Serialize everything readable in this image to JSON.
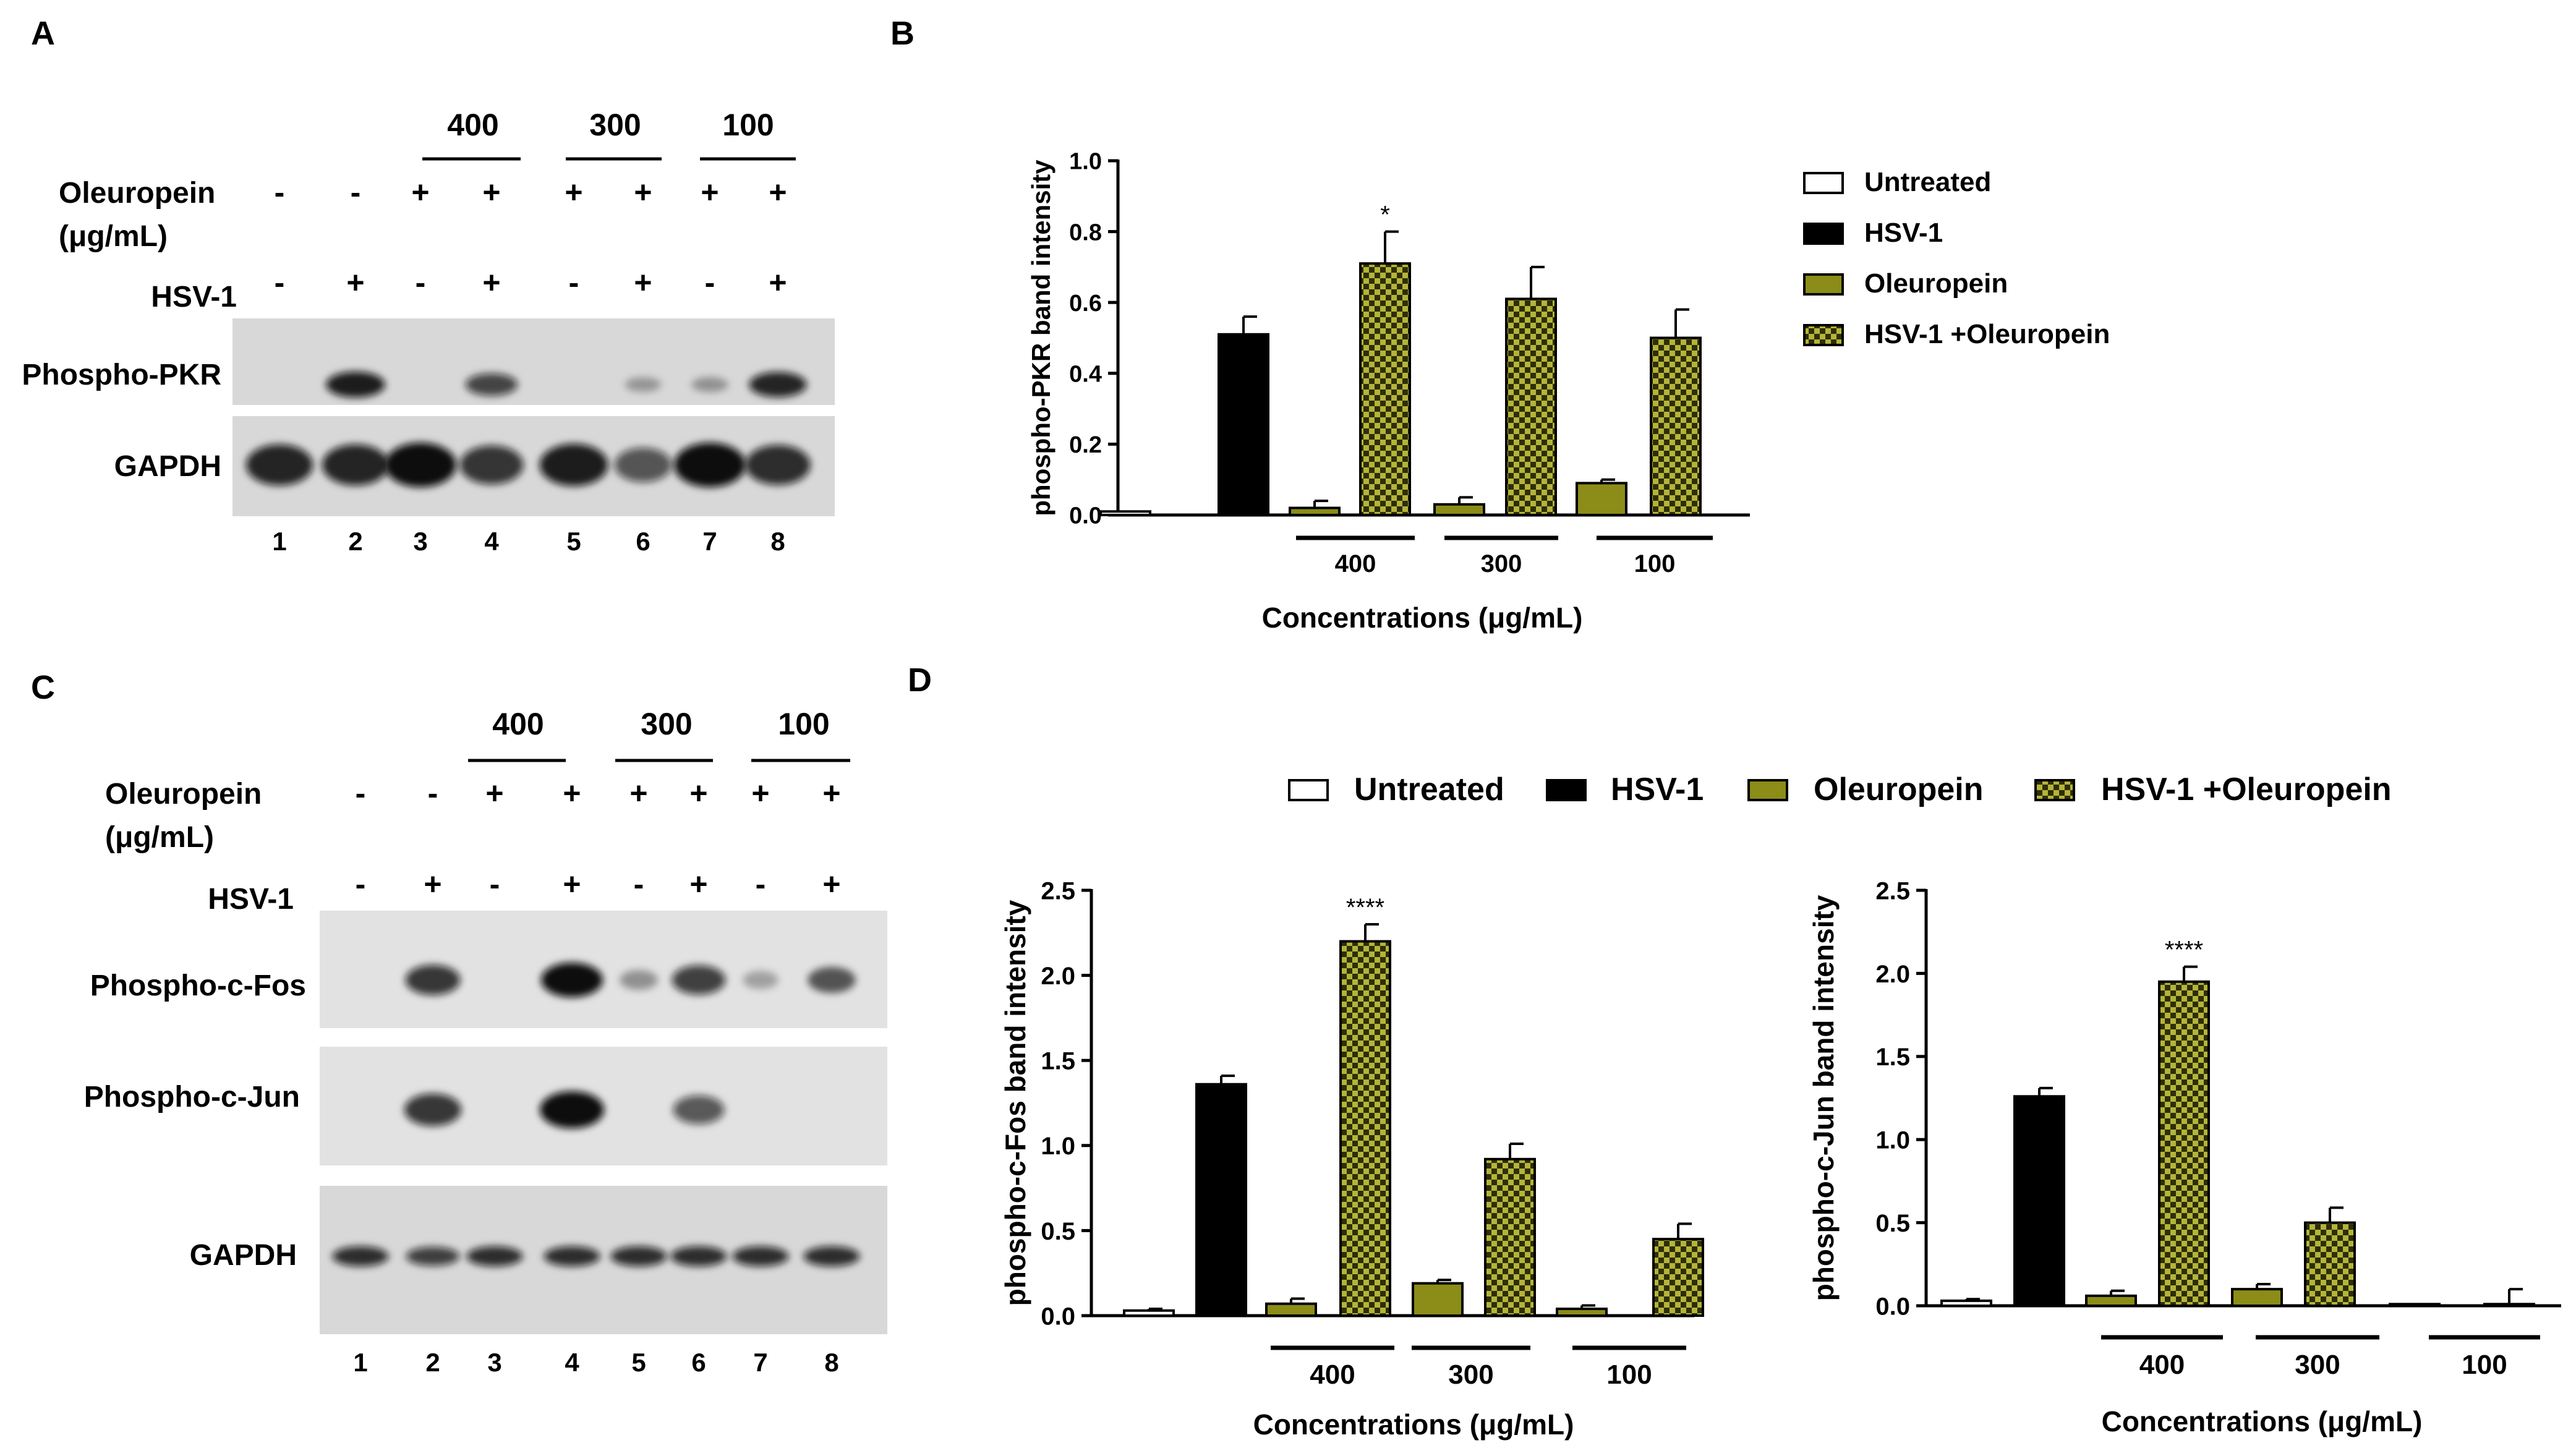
{
  "colors": {
    "untreated": "#ffffff",
    "hsv1": "#000000",
    "oleuropein": "#8c8c18",
    "hsv1_oleuropein_dark": "#2e2e08",
    "hsv1_oleuropein_light": "#b4b43a",
    "blot_background": "#d8d8d8",
    "blot_background_light": "#e2e2e2"
  },
  "panels": {
    "A": {
      "letter": "A"
    },
    "B": {
      "letter": "B"
    },
    "C": {
      "letter": "C"
    },
    "D": {
      "letter": "D"
    }
  },
  "blotA": {
    "concentrations": [
      "400",
      "300",
      "100"
    ],
    "oleuropein_label_line1": "Oleuropein",
    "oleuropein_label_line2": "(μg/mL)",
    "oleuropein_signs": [
      "-",
      "-",
      "+",
      "+",
      "+",
      "+",
      "+",
      "+"
    ],
    "hsv_label": "HSV-1",
    "hsv_signs": [
      "-",
      "+",
      "-",
      "+",
      "-",
      "+",
      "-",
      "+"
    ],
    "band_labels": [
      "Phospho-PKR",
      "GAPDH"
    ],
    "lanes": [
      "1",
      "2",
      "3",
      "4",
      "5",
      "6",
      "7",
      "8"
    ],
    "band_intensity": [
      [
        0.0,
        0.9,
        0.0,
        0.65,
        0.0,
        0.08,
        0.1,
        0.85
      ],
      [
        0.85,
        0.85,
        1.0,
        0.75,
        0.9,
        0.55,
        1.0,
        0.8
      ]
    ]
  },
  "blotC": {
    "concentrations": [
      "400",
      "300",
      "100"
    ],
    "oleuropein_label_line1": "Oleuropein",
    "oleuropein_label_line2": "(μg/mL)",
    "oleuropein_signs": [
      "-",
      "-",
      "+",
      "+",
      "+",
      "+",
      "+",
      "+"
    ],
    "hsv_label": "HSV-1",
    "hsv_signs": [
      "-",
      "+",
      "-",
      "+",
      "-",
      "+",
      "-",
      "+"
    ],
    "band_labels": [
      "Phospho-c-Fos",
      "Phospho-c-Jun",
      "GAPDH"
    ],
    "lanes": [
      "1",
      "2",
      "3",
      "4",
      "5",
      "6",
      "7",
      "8"
    ],
    "band_intensity": [
      [
        0.0,
        0.75,
        0.0,
        1.0,
        0.15,
        0.7,
        0.05,
        0.5
      ],
      [
        0.0,
        0.75,
        0.0,
        1.0,
        0.0,
        0.55,
        0.0,
        0.0
      ],
      [
        0.8,
        0.7,
        0.8,
        0.8,
        0.8,
        0.8,
        0.8,
        0.8
      ]
    ]
  },
  "legend_labels": [
    "Untreated",
    "HSV-1",
    "Oleuropein",
    "HSV-1 +Oleuropein"
  ],
  "chart_data": [
    {
      "type": "bar",
      "id": "B",
      "title": "",
      "ylabel": "phospho-PKR band intensity",
      "xlabel": "Concentrations (μg/mL)",
      "ylim": [
        0,
        1.0
      ],
      "yticks": [
        "0.0",
        "0.2",
        "0.4",
        "0.6",
        "0.8",
        "1.0"
      ],
      "tick_values": [
        0,
        0.2,
        0.4,
        0.6,
        0.8,
        1.0
      ],
      "groups": [
        "400",
        "300",
        "100"
      ],
      "bars": [
        {
          "series": "Untreated",
          "value": 0.01,
          "error": 0.0
        },
        {
          "series": "HSV-1",
          "value": 0.51,
          "error": 0.05
        },
        {
          "series": "Oleuropein",
          "group": "400",
          "value": 0.02,
          "error": 0.02
        },
        {
          "series": "HSV-1 +Oleuropein",
          "group": "400",
          "value": 0.71,
          "error": 0.09,
          "significance": "*"
        },
        {
          "series": "Oleuropein",
          "group": "300",
          "value": 0.03,
          "error": 0.02
        },
        {
          "series": "HSV-1 +Oleuropein",
          "group": "300",
          "value": 0.61,
          "error": 0.09
        },
        {
          "series": "Oleuropein",
          "group": "100",
          "value": 0.09,
          "error": 0.01
        },
        {
          "series": "HSV-1 +Oleuropein",
          "group": "100",
          "value": 0.5,
          "error": 0.08
        }
      ]
    },
    {
      "type": "bar",
      "id": "D-fos",
      "title": "",
      "ylabel": "phospho-c-Fos band intensity",
      "xlabel": "Concentrations (μg/mL)",
      "ylim": [
        0,
        2.5
      ],
      "yticks": [
        "0.0",
        "0.5",
        "1.0",
        "1.5",
        "2.0",
        "2.5"
      ],
      "tick_values": [
        0,
        0.5,
        1.0,
        1.5,
        2.0,
        2.5
      ],
      "groups": [
        "400",
        "300",
        "100"
      ],
      "bars": [
        {
          "series": "Untreated",
          "value": 0.03,
          "error": 0.01
        },
        {
          "series": "HSV-1",
          "value": 1.36,
          "error": 0.05
        },
        {
          "series": "Oleuropein",
          "group": "400",
          "value": 0.07,
          "error": 0.03
        },
        {
          "series": "HSV-1 +Oleuropein",
          "group": "400",
          "value": 2.2,
          "error": 0.1,
          "significance": "****"
        },
        {
          "series": "Oleuropein",
          "group": "300",
          "value": 0.19,
          "error": 0.02
        },
        {
          "series": "HSV-1 +Oleuropein",
          "group": "300",
          "value": 0.92,
          "error": 0.09
        },
        {
          "series": "Oleuropein",
          "group": "100",
          "value": 0.04,
          "error": 0.02
        },
        {
          "series": "HSV-1 +Oleuropein",
          "group": "100",
          "value": 0.45,
          "error": 0.09
        }
      ]
    },
    {
      "type": "bar",
      "id": "D-jun",
      "title": "",
      "ylabel": "phospho-c-Jun band intensity",
      "xlabel": "Concentrations (μg/mL)",
      "ylim": [
        0,
        2.5
      ],
      "yticks": [
        "0.0",
        "0.5",
        "1.0",
        "1.5",
        "2.0",
        "2.5"
      ],
      "tick_values": [
        0,
        0.5,
        1.0,
        1.5,
        2.0,
        2.5
      ],
      "groups": [
        "400",
        "300",
        "100"
      ],
      "bars": [
        {
          "series": "Untreated",
          "value": 0.03,
          "error": 0.01
        },
        {
          "series": "HSV-1",
          "value": 1.26,
          "error": 0.05
        },
        {
          "series": "Oleuropein",
          "group": "400",
          "value": 0.06,
          "error": 0.03
        },
        {
          "series": "HSV-1 +Oleuropein",
          "group": "400",
          "value": 1.95,
          "error": 0.09,
          "significance": "****"
        },
        {
          "series": "Oleuropein",
          "group": "300",
          "value": 0.1,
          "error": 0.03
        },
        {
          "series": "HSV-1 +Oleuropein",
          "group": "300",
          "value": 0.5,
          "error": 0.09
        },
        {
          "series": "Oleuropein",
          "group": "100",
          "value": 0.01,
          "error": 0.0
        },
        {
          "series": "HSV-1 +Oleuropein",
          "group": "100",
          "value": 0.01,
          "error": 0.09
        }
      ]
    }
  ]
}
